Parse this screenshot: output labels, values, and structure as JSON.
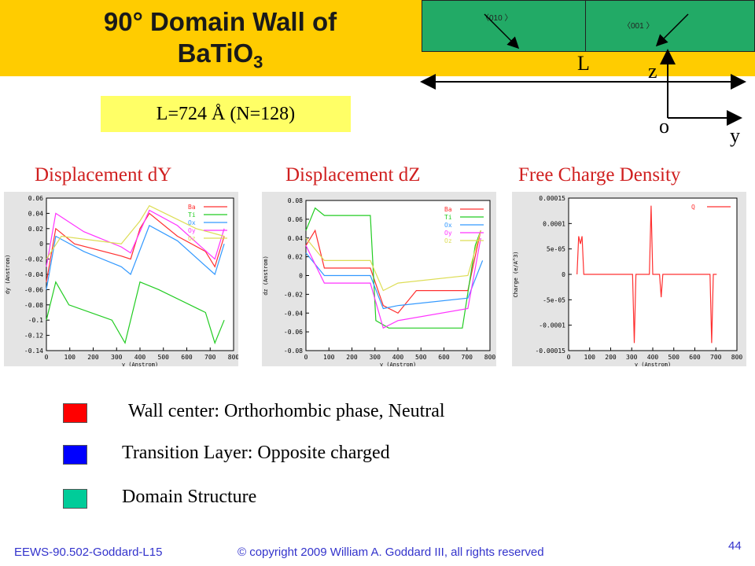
{
  "title": {
    "line1": "90° Domain Wall of",
    "line2_main": "BaTiO",
    "line2_sub": "3"
  },
  "schematic": {
    "left_orientation": "〈010 〉",
    "right_orientation": "〈001 〉",
    "length_label": "L",
    "axis_z": "z",
    "axis_o": "o",
    "axis_y": "y"
  },
  "size_label": "L=724 Å (N=128)",
  "panels": [
    {
      "title": "Displacement dY",
      "ylabel": "dy (Anstrom)",
      "xlabel": "y (Anstrom)",
      "xticks": [
        "0",
        "100",
        "200",
        "300",
        "400",
        "500",
        "600",
        "700",
        "800"
      ],
      "yticks": [
        "0.06",
        "0.04",
        "0.02",
        "0",
        "-0.02",
        "-0.04",
        "-0.06",
        "-0.08",
        "-0.1",
        "-0.12",
        "-0.14"
      ],
      "legend": [
        "Ba",
        "Ti",
        "Ox",
        "Oy",
        "Oz"
      ]
    },
    {
      "title": "Displacement dZ",
      "ylabel": "dz (Anstrom)",
      "xlabel": "y (Anstrom)",
      "xticks": [
        "0",
        "100",
        "200",
        "300",
        "400",
        "500",
        "600",
        "700",
        "800"
      ],
      "yticks": [
        "0.08",
        "0.06",
        "0.04",
        "0.02",
        "0",
        "-0.02",
        "-0.04",
        "-0.06",
        "-0.08"
      ],
      "legend": [
        "Ba",
        "Ti",
        "Ox",
        "Oy",
        "Oz"
      ]
    },
    {
      "title": "Free Charge Density",
      "ylabel": "Charge (e/A^3)",
      "xlabel": "y (Anstrom)",
      "xticks": [
        "0",
        "100",
        "200",
        "300",
        "400",
        "500",
        "600",
        "700",
        "800"
      ],
      "yticks": [
        "0.00015",
        "0.0001",
        "5e-05",
        "0",
        "-5e-05",
        "-0.0001",
        "-0.00015"
      ],
      "legend": [
        "Q"
      ]
    }
  ],
  "legend_items": [
    {
      "label": "Wall center: Orthorhombic phase, Neutral",
      "color": "#ff0000"
    },
    {
      "label": "Transition Layer: Opposite charged",
      "color": "#0000ff"
    },
    {
      "label": "Domain Structure",
      "color": "#00cc99"
    }
  ],
  "series_colors": {
    "Ba": "#ff3030",
    "Ti": "#22cc22",
    "Ox": "#3399ff",
    "Oy": "#ff33ff",
    "Oz": "#dddd55",
    "Q": "#ff3030"
  },
  "footer": {
    "left": "EEWS-90.502-Goddard-L15",
    "center": "© copyright 2009 William A. Goddard III, all rights reserved",
    "page": "44"
  }
}
